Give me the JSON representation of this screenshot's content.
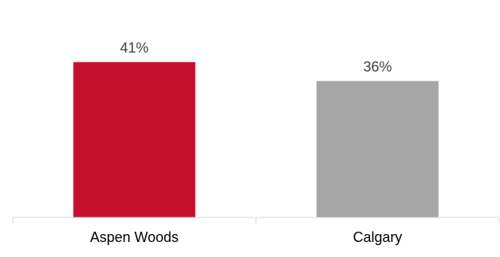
{
  "chart_data": {
    "type": "bar",
    "categories": [
      "Aspen Woods",
      "Calgary"
    ],
    "values": [
      41,
      36
    ],
    "value_labels": [
      "41%",
      "36%"
    ],
    "colors": [
      "#c8102e",
      "#a6a6a6"
    ],
    "title": "",
    "xlabel": "",
    "ylabel": "",
    "ylim": [
      0,
      48
    ],
    "grid": false,
    "legend": "none",
    "axis_color": "#d9d9d9",
    "text_color": "#404040",
    "label_color": "#000000"
  }
}
